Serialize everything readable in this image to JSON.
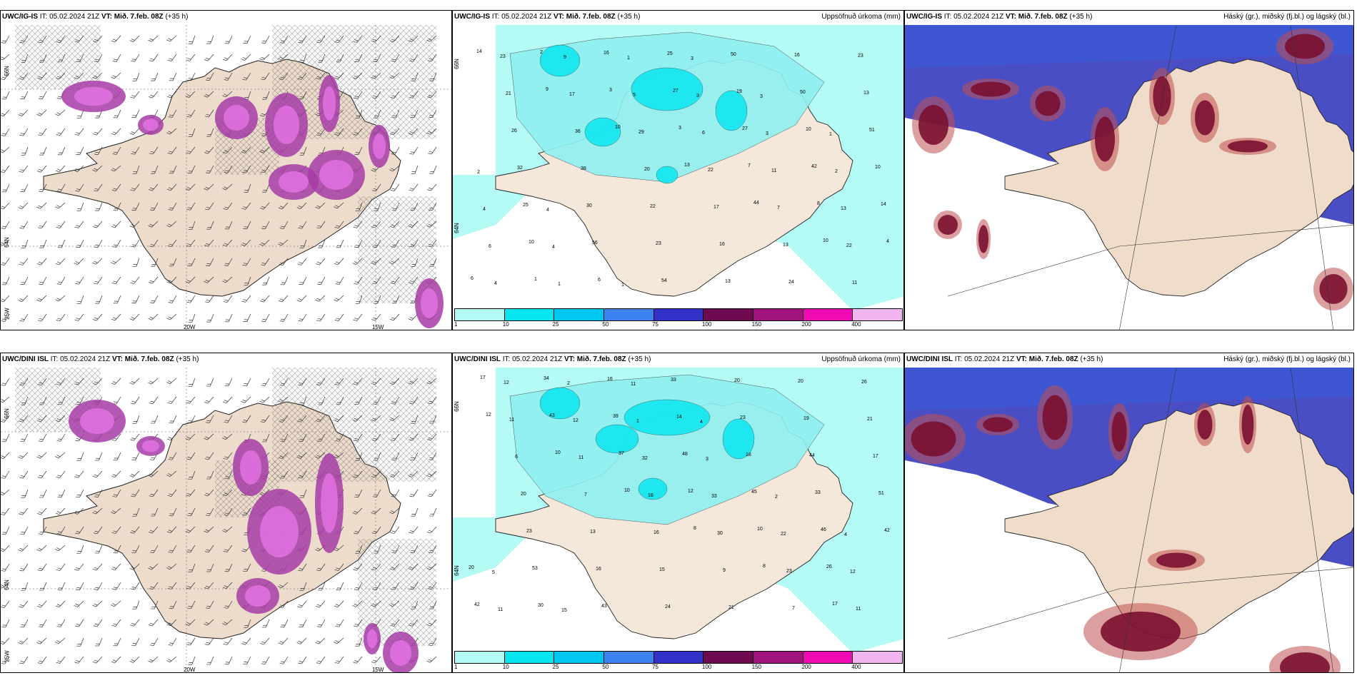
{
  "panels": [
    {
      "id": "top-left",
      "model": "UWC/IG-IS",
      "it_label": "IT:",
      "it": "05.02.2024 21Z",
      "vt_label": "VT:",
      "vt": "Mið. 7.feb. 08Z",
      "lead": "(+35 h)",
      "right": "",
      "axis": {
        "lon": [
          "20W",
          "15W"
        ],
        "lat": [
          "66N",
          "64N",
          "25W"
        ]
      }
    },
    {
      "id": "top-mid",
      "model": "UWC/IG-IS",
      "it_label": "IT:",
      "it": "05.02.2024 21Z",
      "vt_label": "VT:",
      "vt": "Mið. 7.feb. 08Z",
      "lead": "(+35 h)",
      "right": "Uppsöfnuð úrkoma (mm)",
      "axis": {
        "lat": [
          "66N",
          "64N"
        ]
      }
    },
    {
      "id": "top-right",
      "model": "UWC/IG-IS",
      "it_label": "IT:",
      "it": "05.02.2024 21Z",
      "vt_label": "VT:",
      "vt": "Mið. 7.feb. 08Z",
      "lead": "(+35 h)",
      "right": "Háský (gr.), miðský (fj.bl.) og lágský (bl.)"
    },
    {
      "id": "bottom-left",
      "model": "UWC/DINI ISL",
      "it_label": "IT:",
      "it": "05.02.2024 21Z",
      "vt_label": "VT:",
      "vt": "Mið. 7.feb. 08Z",
      "lead": "(+35 h)",
      "right": "",
      "axis": {
        "lon": [
          "20W",
          "15W"
        ],
        "lat": [
          "66N",
          "64N",
          "25W"
        ]
      }
    },
    {
      "id": "bottom-mid",
      "model": "UWC/DINI ISL",
      "it_label": "IT:",
      "it": "05.02.2024 21Z",
      "vt_label": "VT:",
      "vt": "Mið. 7.feb. 08Z",
      "lead": "(+35 h)",
      "right": "Uppsöfnuð úrkoma (mm)",
      "axis": {
        "lat": [
          "66N",
          "64N"
        ]
      }
    },
    {
      "id": "bottom-right",
      "model": "UWC/DINI ISL",
      "it_label": "IT:",
      "it": "05.02.2024 21Z",
      "vt_label": "VT:",
      "vt": "Mið. 7.feb. 08Z",
      "lead": "(+35 h)",
      "right": "Háský (gr.), miðský (fj.bl.) og lágský (bl.)"
    }
  ],
  "colorbar": {
    "ticks": [
      "1",
      "10",
      "25",
      "50",
      "75",
      "100",
      "150",
      "200",
      "400"
    ],
    "colors": [
      "#b4faf5",
      "#0ae6f0",
      "#00c8f0",
      "#3c82f0",
      "#3232c8",
      "#6e0a50",
      "#a0147d",
      "#f00ab4",
      "#f0b4f0"
    ]
  },
  "precip_values": {
    "top": [
      "14",
      "9",
      "10",
      "13",
      "44",
      "10",
      "6",
      "2",
      "3",
      "3",
      "7",
      "8",
      "4",
      "1",
      "16",
      "27",
      "27",
      "42",
      "14",
      "10",
      "6",
      "25",
      "19",
      "10",
      "10",
      "25",
      "56",
      "54",
      "50",
      "50",
      "51",
      "32",
      "30",
      "23",
      "13",
      "16",
      "13",
      "26",
      "38",
      "22",
      "16",
      "24",
      "23",
      "21",
      "36",
      "20",
      "17",
      "13",
      "11",
      "23",
      "17",
      "29",
      "22",
      "7",
      "22",
      "4",
      "9",
      "5",
      "6",
      "11",
      "13",
      "6",
      "1",
      "1",
      "3",
      "3",
      "2",
      "4",
      "4",
      "1",
      "3",
      "3",
      "1",
      "2",
      "4"
    ],
    "bottom": [
      "12",
      "10",
      "10",
      "8",
      "8",
      "17",
      "17",
      "43",
      "37",
      "12",
      "10",
      "26",
      "42",
      "34",
      "39",
      "48",
      "45",
      "46",
      "20",
      "30",
      "16",
      "14",
      "18",
      "33",
      "42",
      "53",
      "43",
      "33",
      "23",
      "44",
      "51",
      "23",
      "16",
      "24",
      "20",
      "19",
      "17",
      "20",
      "13",
      "15",
      "21",
      "20",
      "21",
      "6",
      "7",
      "16",
      "9",
      "7",
      "26",
      "11",
      "11",
      "18",
      "30",
      "23",
      "11",
      "12",
      "12",
      "32",
      "33",
      "22",
      "12",
      "11",
      "2",
      "1",
      "3",
      "2",
      "4",
      "5",
      "15",
      "11",
      "4"
    ]
  }
}
